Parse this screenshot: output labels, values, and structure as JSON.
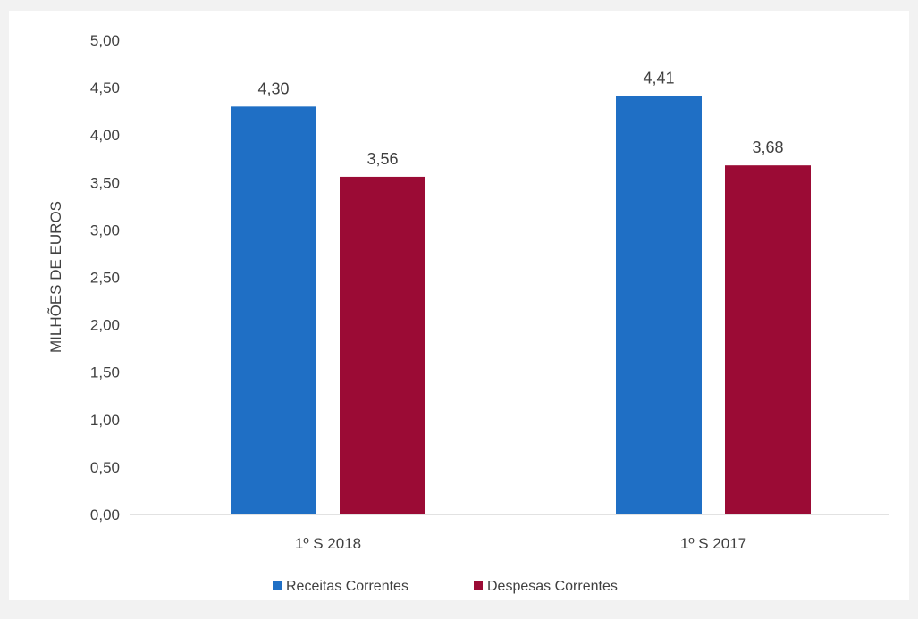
{
  "chart_data": {
    "type": "bar",
    "title": "",
    "xlabel": "",
    "ylabel": "MILHÕES DE EUROS",
    "ylim": [
      0,
      5
    ],
    "yticks": [
      "0,00",
      "0,50",
      "1,00",
      "1,50",
      "2,00",
      "2,50",
      "3,00",
      "3,50",
      "4,00",
      "4,50",
      "5,00"
    ],
    "categories": [
      "1º S 2018",
      "1º S 2017"
    ],
    "series": [
      {
        "name": "Receitas Correntes",
        "color": "#1f6fc5",
        "values": [
          4.3,
          4.41
        ],
        "labels": [
          "4,30",
          "4,41"
        ]
      },
      {
        "name": "Despesas Correntes",
        "color": "#9b0b35",
        "values": [
          3.56,
          3.68
        ],
        "labels": [
          "3,56",
          "3,68"
        ]
      }
    ],
    "grid": false,
    "legend_position": "bottom"
  }
}
